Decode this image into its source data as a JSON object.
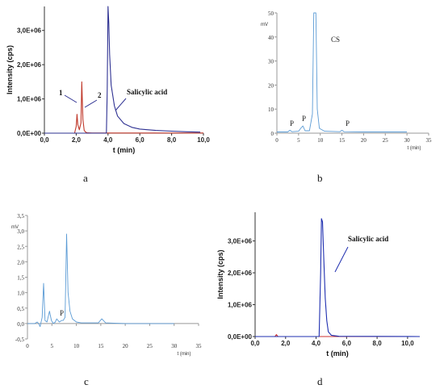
{
  "panel_labels": [
    "a",
    "b",
    "c",
    "d"
  ],
  "chart_data": [
    {
      "panel": "a",
      "type": "line",
      "xlabel": "t (min)",
      "ylabel": "Intensity (cps)",
      "xlim": [
        0,
        10
      ],
      "ylim": [
        0,
        3700000
      ],
      "x_ticks": [
        "0,0",
        "2,0",
        "4,0",
        "6,0",
        "8,0",
        "10,0"
      ],
      "y_ticks": [
        "0,0E+00",
        "1,0E+06",
        "2,0E+06",
        "3,0E+06"
      ],
      "annotations": [
        "1",
        "2",
        "Salicylic acid"
      ],
      "series": [
        {
          "color": "#c0392b",
          "x": [
            0,
            1.9,
            2.0,
            2.05,
            2.1,
            2.2,
            2.3,
            2.35,
            2.42,
            2.5,
            2.6,
            2.7,
            3.0,
            10
          ],
          "y": [
            0,
            0,
            200000,
            550000,
            250000,
            100000,
            300000,
            1500000,
            400000,
            80000,
            30000,
            10000,
            5000,
            5000
          ]
        },
        {
          "color": "#2e3192",
          "x": [
            0,
            3.9,
            3.95,
            4.0,
            4.05,
            4.1,
            4.2,
            4.4,
            4.6,
            5.0,
            5.5,
            6.0,
            7.0,
            8.0,
            9.0,
            9.8
          ],
          "y": [
            0,
            0,
            1200000,
            3700000,
            3200000,
            2300000,
            1400000,
            800000,
            500000,
            280000,
            170000,
            120000,
            80000,
            60000,
            40000,
            30000
          ]
        }
      ]
    },
    {
      "panel": "b",
      "type": "line",
      "xlabel": "t (min)",
      "ylabel": "mV",
      "xlim": [
        0,
        35
      ],
      "ylim": [
        0,
        50
      ],
      "x_ticks": [
        "0",
        "5",
        "10",
        "15",
        "20",
        "25",
        "30",
        "35"
      ],
      "y_ticks": [
        "0",
        "10",
        "20",
        "30",
        "40",
        "50"
      ],
      "annotations": [
        "P",
        "P",
        "CS",
        "P"
      ],
      "series": [
        {
          "color": "#5b9bd5",
          "x": [
            0,
            2.5,
            3.0,
            3.5,
            5.0,
            5.5,
            6.0,
            6.5,
            7.5,
            8.2,
            8.5,
            9.0,
            9.3,
            9.8,
            11,
            14.5,
            15.0,
            15.5,
            20,
            25,
            29.5,
            30.0
          ],
          "y": [
            0.5,
            0.5,
            1.2,
            0.6,
            0.8,
            2.0,
            3.0,
            1.0,
            1.0,
            8,
            50,
            50,
            10,
            2,
            0.8,
            0.6,
            1.2,
            0.6,
            0.5,
            0.5,
            0.5,
            0.5
          ]
        }
      ]
    },
    {
      "panel": "c",
      "type": "line",
      "xlabel": "t (min)",
      "ylabel": "mV",
      "xlim": [
        0,
        35
      ],
      "ylim": [
        -0.5,
        3.5
      ],
      "x_ticks": [
        "0",
        "5",
        "10",
        "15",
        "20",
        "25",
        "30",
        "35"
      ],
      "y_ticks": [
        "-0,5",
        "0,0",
        "0,5",
        "1,0",
        "1,5",
        "2,0",
        "2,5",
        "3,0",
        "3,5"
      ],
      "annotations": [
        "P"
      ],
      "series": [
        {
          "color": "#5b9bd5",
          "x": [
            0,
            1.5,
            2.0,
            2.3,
            2.6,
            3.0,
            3.3,
            3.6,
            4.0,
            4.5,
            4.9,
            5.3,
            5.7,
            6.0,
            6.5,
            7.0,
            7.3,
            7.7,
            8.0,
            8.3,
            8.7,
            9.2,
            10,
            11,
            14.5,
            15.2,
            16,
            20,
            25,
            30
          ],
          "y": [
            0,
            0,
            0.05,
            0,
            -0.1,
            0.2,
            1.3,
            0.1,
            0.05,
            0.4,
            0.1,
            0,
            0.05,
            0.15,
            0.05,
            0.1,
            0.1,
            0.2,
            2.9,
            1.0,
            0.4,
            0.15,
            0.05,
            0.02,
            0.02,
            0.15,
            0.02,
            0,
            0,
            0
          ]
        }
      ]
    },
    {
      "panel": "d",
      "type": "line",
      "xlabel": "t (min)",
      "ylabel": "Intensity (cps)",
      "xlim": [
        0,
        10.8
      ],
      "ylim": [
        0,
        3900000
      ],
      "x_ticks": [
        "0,0",
        "2,0",
        "4,0",
        "6,0",
        "8,0",
        "10,0"
      ],
      "y_ticks": [
        "0,0E+00",
        "1,0E+06",
        "2,0E+06",
        "3,0E+06"
      ],
      "annotations": [
        "Salicylic acid"
      ],
      "series": [
        {
          "color": "#cc3333",
          "x": [
            0,
            1.3,
            1.4,
            1.5,
            10.8
          ],
          "y": [
            0,
            0,
            60000,
            0,
            0
          ]
        },
        {
          "color": "#1f2fb0",
          "x": [
            0,
            4.2,
            4.3,
            4.35,
            4.42,
            4.5,
            4.6,
            4.7,
            4.8,
            5.0,
            5.5,
            10.8
          ],
          "y": [
            0,
            0,
            2000000,
            3700000,
            3600000,
            2500000,
            1200000,
            500000,
            150000,
            40000,
            8000,
            0
          ]
        }
      ]
    }
  ]
}
